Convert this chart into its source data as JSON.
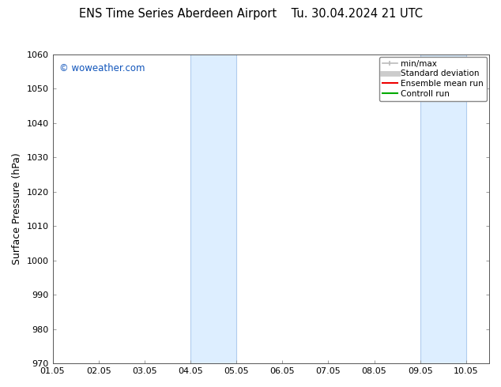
{
  "title_left": "ENS Time Series Aberdeen Airport",
  "title_right": "Tu. 30.04.2024 21 UTC",
  "ylabel": "Surface Pressure (hPa)",
  "ylim": [
    970,
    1060
  ],
  "yticks": [
    970,
    980,
    990,
    1000,
    1010,
    1020,
    1030,
    1040,
    1050,
    1060
  ],
  "xlim": [
    0.0,
    9.5
  ],
  "xtick_labels": [
    "01.05",
    "02.05",
    "03.05",
    "04.05",
    "05.05",
    "06.05",
    "07.05",
    "08.05",
    "09.05",
    "10.05"
  ],
  "xtick_positions": [
    0,
    1,
    2,
    3,
    4,
    5,
    6,
    7,
    8,
    9
  ],
  "shaded_bands": [
    {
      "xmin": 3.0,
      "xmax": 4.0,
      "line_left": true,
      "line_right": true
    },
    {
      "xmin": 8.0,
      "xmax": 9.0,
      "line_left": true,
      "line_right": true
    }
  ],
  "band_color": "#ddeeff",
  "band_line_color": "#b0ccee",
  "watermark": "© woweather.com",
  "watermark_color": "#1155bb",
  "bg_color": "#ffffff",
  "plot_bg_color": "#ffffff",
  "legend_entries": [
    {
      "label": "min/max",
      "color": "#bbbbbb",
      "lw": 1.2,
      "type": "line_with_cap"
    },
    {
      "label": "Standard deviation",
      "color": "#cccccc",
      "lw": 5,
      "type": "line"
    },
    {
      "label": "Ensemble mean run",
      "color": "#ee0000",
      "lw": 1.5,
      "type": "line"
    },
    {
      "label": "Controll run",
      "color": "#00aa00",
      "lw": 1.5,
      "type": "line"
    }
  ],
  "title_fontsize": 10.5,
  "ylabel_fontsize": 9,
  "tick_fontsize": 8,
  "watermark_fontsize": 8.5,
  "legend_fontsize": 7.5
}
